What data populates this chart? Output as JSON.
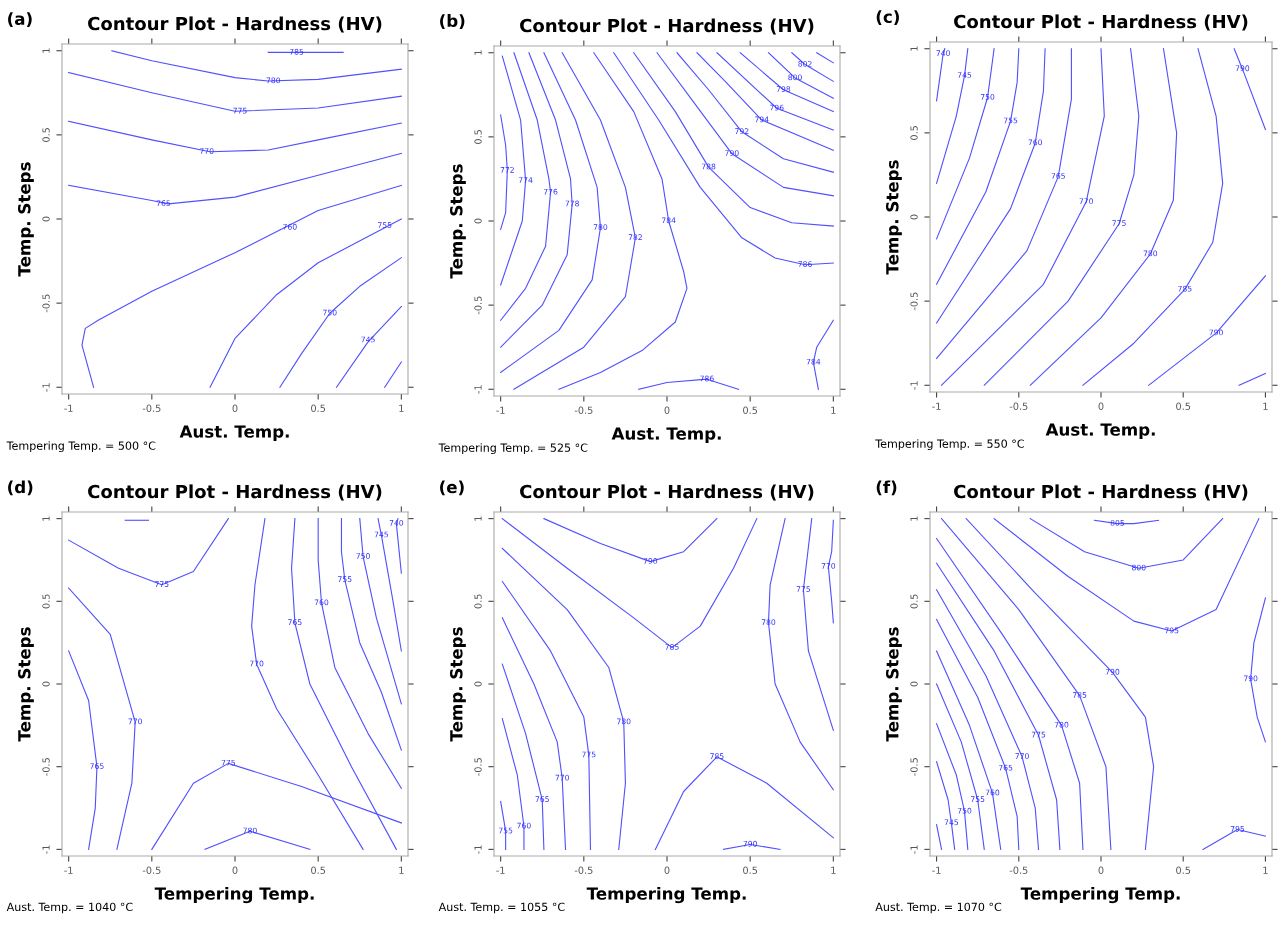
{
  "chart_data": [
    {
      "type": "line",
      "title": "Contour Plot - Hardness (HV)",
      "xlabel": "Aust. Temp.",
      "ylabel": "Temp. Steps",
      "xlim": [
        -1.04,
        1.04
      ],
      "ylim": [
        -1.04,
        1.04
      ],
      "xticks": [
        -1,
        -0.5,
        0,
        0.5,
        1
      ],
      "yticks": [
        -1,
        -0.5,
        0,
        0.5,
        1
      ],
      "annotations": [
        "(a)",
        "Tempering Temp. = 500 °C",
        {
          "text": "785",
          "x": 0.37,
          "y": 0.99
        },
        {
          "text": "780",
          "x": 0.23,
          "y": 0.82
        },
        {
          "text": "775",
          "x": 0.03,
          "y": 0.64
        },
        {
          "text": "770",
          "x": -0.17,
          "y": 0.4
        },
        {
          "text": "765",
          "x": -0.43,
          "y": 0.09
        },
        {
          "text": "760",
          "x": 0.33,
          "y": -0.05
        },
        {
          "text": "755",
          "x": 0.9,
          "y": -0.04
        },
        {
          "text": "750",
          "x": 0.57,
          "y": -0.56
        },
        {
          "text": "745",
          "x": 0.8,
          "y": -0.72
        }
      ],
      "series": [
        {
          "color": "#5050ff",
          "x": [
            0.2,
            0.37,
            0.65
          ],
          "values": [
            0.99,
            0.99,
            0.99
          ]
        },
        {
          "color": "#5050ff",
          "x": [
            -0.74,
            -0.5,
            0,
            0.2,
            0.5,
            1
          ],
          "values": [
            1.0,
            0.94,
            0.84,
            0.82,
            0.83,
            0.89
          ]
        },
        {
          "color": "#5050ff",
          "x": [
            -1,
            -0.5,
            0,
            0.5,
            1
          ],
          "values": [
            0.87,
            0.75,
            0.64,
            0.66,
            0.73
          ]
        },
        {
          "color": "#5050ff",
          "x": [
            -1,
            -0.5,
            -0.15,
            0.2,
            0.5,
            1
          ],
          "values": [
            0.58,
            0.47,
            0.4,
            0.41,
            0.47,
            0.57
          ]
        },
        {
          "color": "#5050ff",
          "x": [
            -1,
            -0.5,
            -0.4,
            0,
            0.5,
            1
          ],
          "values": [
            0.2,
            0.11,
            0.09,
            0.13,
            0.26,
            0.39
          ]
        },
        {
          "color": "#5050ff",
          "x": [
            -0.85,
            -0.92,
            -0.9,
            -0.82,
            -0.5,
            0,
            0.5,
            1
          ],
          "values": [
            -1,
            -0.75,
            -0.65,
            -0.6,
            -0.43,
            -0.2,
            0.05,
            0.2
          ]
        },
        {
          "color": "#5050ff",
          "x": [
            -0.15,
            0,
            0.25,
            0.5,
            1
          ],
          "values": [
            -1,
            -0.71,
            -0.45,
            -0.26,
            0.0
          ]
        },
        {
          "color": "#5050ff",
          "x": [
            0.27,
            0.4,
            0.57,
            0.75,
            1
          ],
          "values": [
            -1,
            -0.8,
            -0.56,
            -0.4,
            -0.23
          ]
        },
        {
          "color": "#5050ff",
          "x": [
            0.61,
            0.8,
            1
          ],
          "values": [
            -1,
            -0.73,
            -0.52
          ]
        },
        {
          "color": "#5050ff",
          "x": [
            0.9,
            1
          ],
          "values": [
            -1,
            -0.85
          ]
        }
      ]
    },
    {
      "type": "line",
      "title": "Contour Plot - Hardness (HV)",
      "xlabel": "Aust. Temp.",
      "ylabel": "Temp. Steps",
      "xlim": [
        -1.04,
        1.04
      ],
      "ylim": [
        -1.04,
        1.04
      ],
      "xticks": [
        -1,
        -0.5,
        0,
        0.5,
        1
      ],
      "yticks": [
        -1,
        -0.5,
        0,
        0.5,
        1
      ],
      "annotations": [
        "(b)",
        "Tempering Temp. = 525 °C",
        {
          "text": "772",
          "x": -0.96,
          "y": 0.3
        },
        {
          "text": "774",
          "x": -0.85,
          "y": 0.24
        },
        {
          "text": "776",
          "x": -0.7,
          "y": 0.17
        },
        {
          "text": "778",
          "x": -0.57,
          "y": 0.1
        },
        {
          "text": "780",
          "x": -0.4,
          "y": -0.04
        },
        {
          "text": "782",
          "x": -0.19,
          "y": -0.1
        },
        {
          "text": "784",
          "x": 0.01,
          "y": 0.0
        },
        {
          "text": "786",
          "x": 0.83,
          "y": -0.26
        },
        {
          "text": "788",
          "x": 0.25,
          "y": 0.32
        },
        {
          "text": "790",
          "x": 0.39,
          "y": 0.4
        },
        {
          "text": "792",
          "x": 0.45,
          "y": 0.53
        },
        {
          "text": "794",
          "x": 0.57,
          "y": 0.6
        },
        {
          "text": "796",
          "x": 0.66,
          "y": 0.67
        },
        {
          "text": "798",
          "x": 0.7,
          "y": 0.78
        },
        {
          "text": "800",
          "x": 0.77,
          "y": 0.85
        },
        {
          "text": "802",
          "x": 0.83,
          "y": 0.93
        },
        {
          "text": "786",
          "x": 0.24,
          "y": -0.94
        },
        {
          "text": "784",
          "x": 0.88,
          "y": -0.84
        }
      ],
      "series": [
        {
          "color": "#5050ff",
          "x": [
            -1,
            -0.97,
            -0.96,
            -0.97,
            -1
          ],
          "values": [
            0.63,
            0.45,
            0.3,
            0.05,
            -0.05
          ]
        },
        {
          "color": "#5050ff",
          "x": [
            -0.99,
            -0.88,
            -0.85,
            -0.87,
            -1
          ],
          "values": [
            0.98,
            0.6,
            0.24,
            0.0,
            -0.38
          ]
        },
        {
          "color": "#5050ff",
          "x": [
            -0.92,
            -0.78,
            -0.71,
            -0.7,
            -0.73,
            -0.85,
            -1
          ],
          "values": [
            1,
            0.6,
            0.25,
            0.17,
            -0.15,
            -0.4,
            -0.59
          ]
        },
        {
          "color": "#5050ff",
          "x": [
            -0.83,
            -0.67,
            -0.58,
            -0.57,
            -0.6,
            -0.75,
            -1
          ],
          "values": [
            1,
            0.6,
            0.25,
            0.1,
            -0.2,
            -0.5,
            -0.75
          ]
        },
        {
          "color": "#5050ff",
          "x": [
            -0.74,
            -0.55,
            -0.42,
            -0.4,
            -0.45,
            -0.65,
            -1
          ],
          "values": [
            1,
            0.6,
            0.2,
            -0.04,
            -0.35,
            -0.65,
            -0.9
          ]
        },
        {
          "color": "#5050ff",
          "x": [
            -0.63,
            -0.4,
            -0.25,
            -0.19,
            -0.25,
            -0.5,
            -0.92
          ],
          "values": [
            1,
            0.6,
            0.2,
            -0.1,
            -0.45,
            -0.75,
            -1
          ]
        },
        {
          "color": "#5050ff",
          "x": [
            -0.44,
            -0.2,
            -0.03,
            0.01,
            0.1,
            0.12,
            0.05,
            -0.15,
            -0.4,
            -0.65
          ],
          "values": [
            1,
            0.65,
            0.25,
            0.0,
            -0.3,
            -0.4,
            -0.6,
            -0.77,
            -0.9,
            -1
          ]
        },
        {
          "color": "#5050ff",
          "x": [
            -0.32,
            -0.05,
            0.2,
            0.45,
            0.65,
            0.83,
            1
          ],
          "values": [
            1,
            0.6,
            0.2,
            -0.1,
            -0.22,
            -0.26,
            -0.25
          ]
        },
        {
          "color": "#5050ff",
          "x": [
            -0.2,
            0.05,
            0.25,
            0.5,
            0.75,
            1
          ],
          "values": [
            1,
            0.65,
            0.32,
            0.08,
            -0.01,
            -0.03
          ]
        },
        {
          "color": "#5050ff",
          "x": [
            -0.06,
            0.15,
            0.39,
            0.7,
            1
          ],
          "values": [
            1,
            0.72,
            0.4,
            0.2,
            0.15
          ]
        },
        {
          "color": "#5050ff",
          "x": [
            0.06,
            0.25,
            0.45,
            0.7,
            1
          ],
          "values": [
            1,
            0.78,
            0.53,
            0.37,
            0.29
          ]
        },
        {
          "color": "#5050ff",
          "x": [
            0.18,
            0.35,
            0.57,
            1
          ],
          "values": [
            1,
            0.83,
            0.6,
            0.42
          ]
        },
        {
          "color": "#5050ff",
          "x": [
            0.3,
            0.66,
            1
          ],
          "values": [
            1,
            0.67,
            0.54
          ]
        },
        {
          "color": "#5050ff",
          "x": [
            0.44,
            0.7,
            1
          ],
          "values": [
            1,
            0.78,
            0.65
          ]
        },
        {
          "color": "#5050ff",
          "x": [
            0.61,
            0.77,
            1
          ],
          "values": [
            1,
            0.85,
            0.73
          ]
        },
        {
          "color": "#5050ff",
          "x": [
            0.75,
            0.83,
            1
          ],
          "values": [
            1,
            0.93,
            0.83
          ]
        },
        {
          "color": "#5050ff",
          "x": [
            0.9,
            1
          ],
          "values": [
            1,
            0.94
          ]
        },
        {
          "color": "#5050ff",
          "x": [
            -0.17,
            0.0,
            0.24,
            0.43
          ],
          "values": [
            -1,
            -0.96,
            -0.94,
            -1
          ]
        },
        {
          "color": "#5050ff",
          "x": [
            1,
            0.9,
            0.88,
            0.91
          ],
          "values": [
            -0.59,
            -0.75,
            -0.84,
            -1
          ]
        }
      ]
    },
    {
      "type": "line",
      "title": "Contour Plot - Hardness (HV)",
      "xlabel": "Aust. Temp.",
      "ylabel": "Temp. Steps",
      "xlim": [
        -1.04,
        1.04
      ],
      "ylim": [
        -1.04,
        1.04
      ],
      "xticks": [
        -1,
        -0.5,
        0,
        0.5,
        1
      ],
      "yticks": [
        -1,
        -0.5,
        0,
        0.5,
        1
      ],
      "annotations": [
        "(c)",
        "Tempering Temp. = 550 °C",
        {
          "text": "740",
          "x": -0.96,
          "y": 0.97
        },
        {
          "text": "745",
          "x": -0.83,
          "y": 0.84
        },
        {
          "text": "750",
          "x": -0.69,
          "y": 0.71
        },
        {
          "text": "755",
          "x": -0.55,
          "y": 0.57
        },
        {
          "text": "760",
          "x": -0.4,
          "y": 0.44
        },
        {
          "text": "765",
          "x": -0.26,
          "y": 0.24
        },
        {
          "text": "770",
          "x": -0.09,
          "y": 0.09
        },
        {
          "text": "775",
          "x": 0.11,
          "y": -0.04
        },
        {
          "text": "780",
          "x": 0.3,
          "y": -0.22
        },
        {
          "text": "785",
          "x": 0.51,
          "y": -0.43
        },
        {
          "text": "790",
          "x": 0.86,
          "y": 0.88
        },
        {
          "text": "790",
          "x": 0.7,
          "y": -0.69
        }
      ],
      "series": [
        {
          "color": "#5050ff",
          "x": [
            -0.95,
            -0.96,
            -1
          ],
          "values": [
            1,
            0.97,
            0.69
          ]
        },
        {
          "color": "#5050ff",
          "x": [
            -0.81,
            -0.83,
            -0.88,
            -1
          ],
          "values": [
            1,
            0.84,
            0.6,
            0.2
          ]
        },
        {
          "color": "#5050ff",
          "x": [
            -0.65,
            -0.69,
            -0.8,
            -1
          ],
          "values": [
            1,
            0.71,
            0.35,
            -0.13
          ]
        },
        {
          "color": "#5050ff",
          "x": [
            -0.5,
            -0.51,
            -0.55,
            -0.7,
            -1
          ],
          "values": [
            1,
            0.8,
            0.57,
            0.15,
            -0.4
          ]
        },
        {
          "color": "#5050ff",
          "x": [
            -0.34,
            -0.35,
            -0.4,
            -0.55,
            -1
          ],
          "values": [
            1,
            0.75,
            0.44,
            0.05,
            -0.63
          ]
        },
        {
          "color": "#5050ff",
          "x": [
            -0.18,
            -0.18,
            -0.26,
            -0.45,
            -1
          ],
          "values": [
            1,
            0.7,
            0.24,
            -0.2,
            -0.84
          ]
        },
        {
          "color": "#5050ff",
          "x": [
            0.0,
            0.02,
            -0.09,
            -0.35,
            -0.97
          ],
          "values": [
            1,
            0.6,
            0.09,
            -0.4,
            -1
          ]
        },
        {
          "color": "#5050ff",
          "x": [
            0.18,
            0.23,
            0.2,
            0.11,
            -0.2,
            -0.71
          ],
          "values": [
            1,
            0.6,
            0.25,
            -0.04,
            -0.5,
            -1
          ]
        },
        {
          "color": "#5050ff",
          "x": [
            0.38,
            0.46,
            0.44,
            0.3,
            0.0,
            -0.43
          ],
          "values": [
            1,
            0.5,
            0.1,
            -0.22,
            -0.6,
            -1
          ]
        },
        {
          "color": "#5050ff",
          "x": [
            0.59,
            0.7,
            0.74,
            0.68,
            0.51,
            0.2,
            -0.11
          ],
          "values": [
            1,
            0.6,
            0.2,
            -0.15,
            -0.43,
            -0.75,
            -1
          ]
        },
        {
          "color": "#5050ff",
          "x": [
            0.81,
            0.86,
            1
          ],
          "values": [
            1,
            0.88,
            0.52
          ]
        },
        {
          "color": "#5050ff",
          "x": [
            1,
            0.7,
            0.29
          ],
          "values": [
            -0.35,
            -0.69,
            -1
          ]
        },
        {
          "color": "#5050ff",
          "x": [
            0.84,
            1
          ],
          "values": [
            -1,
            -0.93
          ]
        }
      ]
    },
    {
      "type": "line",
      "title": "Contour Plot - Hardness (HV)",
      "xlabel": "Tempering Temp.",
      "ylabel": "Temp. Steps",
      "xlim": [
        -1.04,
        1.04
      ],
      "ylim": [
        -1.04,
        1.04
      ],
      "xticks": [
        -1,
        -0.5,
        0,
        0.5,
        1
      ],
      "yticks": [
        -1,
        -0.5,
        0,
        0.5,
        1
      ],
      "annotations": [
        "(d)",
        "Aust. Temp. = 1040 °C",
        {
          "text": "775",
          "x": -0.44,
          "y": 0.6
        },
        {
          "text": "770",
          "x": -0.6,
          "y": -0.23
        },
        {
          "text": "765",
          "x": -0.83,
          "y": -0.5
        },
        {
          "text": "775",
          "x": -0.04,
          "y": -0.48
        },
        {
          "text": "780",
          "x": 0.09,
          "y": -0.89
        },
        {
          "text": "770",
          "x": 0.13,
          "y": 0.12
        },
        {
          "text": "765",
          "x": 0.36,
          "y": 0.37
        },
        {
          "text": "760",
          "x": 0.52,
          "y": 0.49
        },
        {
          "text": "755",
          "x": 0.66,
          "y": 0.63
        },
        {
          "text": "750",
          "x": 0.77,
          "y": 0.77
        },
        {
          "text": "745",
          "x": 0.88,
          "y": 0.9
        },
        {
          "text": "740",
          "x": 0.97,
          "y": 0.97
        }
      ],
      "series": [
        {
          "color": "#5050ff",
          "x": [
            -0.66,
            -0.52
          ],
          "values": [
            0.99,
            0.99
          ]
        },
        {
          "color": "#5050ff",
          "x": [
            -1,
            -0.7,
            -0.44,
            -0.25,
            -0.04
          ],
          "values": [
            0.87,
            0.7,
            0.6,
            0.68,
            1
          ]
        },
        {
          "color": "#5050ff",
          "x": [
            -1,
            -0.75,
            -0.6,
            -0.62,
            -0.71
          ],
          "values": [
            0.58,
            0.3,
            -0.23,
            -0.6,
            -1
          ]
        },
        {
          "color": "#5050ff",
          "x": [
            -1,
            -0.88,
            -0.83,
            -0.84,
            -0.88
          ],
          "values": [
            0.2,
            -0.1,
            -0.5,
            -0.75,
            -1
          ]
        },
        {
          "color": "#5050ff",
          "x": [
            -0.5,
            -0.25,
            -0.04,
            0.4,
            1
          ],
          "values": [
            -1,
            -0.6,
            -0.48,
            -0.62,
            -0.84
          ]
        },
        {
          "color": "#5050ff",
          "x": [
            -0.18,
            0.09,
            0.45
          ],
          "values": [
            -1,
            -0.89,
            -1
          ]
        },
        {
          "color": "#5050ff",
          "x": [
            0.18,
            0.12,
            0.1,
            0.13,
            0.25,
            0.5,
            0.77
          ],
          "values": [
            1,
            0.6,
            0.35,
            0.12,
            -0.15,
            -0.55,
            -1
          ]
        },
        {
          "color": "#5050ff",
          "x": [
            0.36,
            0.34,
            0.36,
            0.45,
            0.7,
            0.97
          ],
          "values": [
            1,
            0.7,
            0.37,
            0.0,
            -0.5,
            -1
          ]
        },
        {
          "color": "#5050ff",
          "x": [
            0.5,
            0.5,
            0.52,
            0.6,
            0.8,
            1
          ],
          "values": [
            1,
            0.75,
            0.49,
            0.1,
            -0.3,
            -0.63
          ]
        },
        {
          "color": "#5050ff",
          "x": [
            0.64,
            0.64,
            0.66,
            0.75,
            0.88,
            1
          ],
          "values": [
            1,
            0.8,
            0.63,
            0.25,
            -0.05,
            -0.4
          ]
        },
        {
          "color": "#5050ff",
          "x": [
            0.75,
            0.77,
            0.85,
            1
          ],
          "values": [
            1,
            0.77,
            0.4,
            -0.12
          ]
        },
        {
          "color": "#5050ff",
          "x": [
            0.86,
            0.88,
            0.95,
            1
          ],
          "values": [
            1,
            0.9,
            0.5,
            0.2
          ]
        },
        {
          "color": "#5050ff",
          "x": [
            0.98,
            0.97,
            1
          ],
          "values": [
            1,
            0.97,
            0.67
          ]
        }
      ]
    },
    {
      "type": "line",
      "title": "Contour Plot - Hardness (HV)",
      "xlabel": "Tempering Temp.",
      "ylabel": "Temp. Steps",
      "xlim": [
        -1.04,
        1.04
      ],
      "ylim": [
        -1.04,
        1.04
      ],
      "xticks": [
        -1,
        -0.5,
        0,
        0.5,
        1
      ],
      "yticks": [
        -1,
        -0.5,
        0,
        0.5,
        1
      ],
      "annotations": [
        "(e)",
        "Aust. Temp. = 1055 °C",
        {
          "text": "790",
          "x": -0.1,
          "y": 0.74
        },
        {
          "text": "785",
          "x": 0.03,
          "y": 0.22
        },
        {
          "text": "780",
          "x": -0.26,
          "y": -0.23
        },
        {
          "text": "775",
          "x": -0.47,
          "y": -0.43
        },
        {
          "text": "770",
          "x": -0.63,
          "y": -0.57
        },
        {
          "text": "765",
          "x": -0.75,
          "y": -0.7
        },
        {
          "text": "760",
          "x": -0.86,
          "y": -0.86
        },
        {
          "text": "755",
          "x": -0.97,
          "y": -0.89
        },
        {
          "text": "780",
          "x": 0.61,
          "y": 0.37
        },
        {
          "text": "775",
          "x": 0.82,
          "y": 0.57
        },
        {
          "text": "770",
          "x": 0.97,
          "y": 0.71
        },
        {
          "text": "785",
          "x": 0.3,
          "y": -0.44
        },
        {
          "text": "790",
          "x": 0.5,
          "y": -0.97
        }
      ],
      "series": [
        {
          "color": "#5050ff",
          "x": [
            -0.74,
            -0.4,
            -0.1,
            0.1,
            0.3
          ],
          "values": [
            1,
            0.85,
            0.74,
            0.8,
            1
          ]
        },
        {
          "color": "#5050ff",
          "x": [
            -0.99,
            -0.6,
            -0.2,
            0.03,
            0.2,
            0.4,
            0.54
          ],
          "values": [
            1,
            0.7,
            0.4,
            0.22,
            0.35,
            0.7,
            1
          ]
        },
        {
          "color": "#5050ff",
          "x": [
            -0.99,
            -0.6,
            -0.35,
            -0.26,
            -0.25,
            -0.29
          ],
          "values": [
            0.82,
            0.45,
            0.1,
            -0.23,
            -0.6,
            -1
          ]
        },
        {
          "color": "#5050ff",
          "x": [
            -0.99,
            -0.7,
            -0.5,
            -0.47,
            -0.46
          ],
          "values": [
            0.62,
            0.2,
            -0.2,
            -0.43,
            -1
          ]
        },
        {
          "color": "#5050ff",
          "x": [
            -0.99,
            -0.8,
            -0.66,
            -0.63,
            -0.61
          ],
          "values": [
            0.4,
            0.0,
            -0.35,
            -0.57,
            -1
          ]
        },
        {
          "color": "#5050ff",
          "x": [
            -0.99,
            -0.85,
            -0.75,
            -0.74
          ],
          "values": [
            0.12,
            -0.3,
            -0.7,
            -1
          ]
        },
        {
          "color": "#5050ff",
          "x": [
            -0.99,
            -0.9,
            -0.86,
            -0.86
          ],
          "values": [
            -0.21,
            -0.55,
            -0.86,
            -1
          ]
        },
        {
          "color": "#5050ff",
          "x": [
            -1,
            -0.97,
            -0.97
          ],
          "values": [
            -0.71,
            -0.89,
            -1
          ]
        },
        {
          "color": "#5050ff",
          "x": [
            0.71,
            0.62,
            0.61,
            0.65,
            0.8,
            1
          ],
          "values": [
            1,
            0.6,
            0.37,
            0.0,
            -0.35,
            -0.64
          ]
        },
        {
          "color": "#5050ff",
          "x": [
            0.87,
            0.82,
            0.85,
            1
          ],
          "values": [
            1,
            0.57,
            0.2,
            -0.28
          ]
        },
        {
          "color": "#5050ff",
          "x": [
            1,
            0.99,
            0.97,
            0.99,
            1
          ],
          "values": [
            0.99,
            0.8,
            0.71,
            0.5,
            0.37
          ]
        },
        {
          "color": "#5050ff",
          "x": [
            -0.07,
            0.1,
            0.3,
            0.6,
            1
          ],
          "values": [
            -1,
            -0.65,
            -0.44,
            -0.6,
            -0.93
          ]
        },
        {
          "color": "#5050ff",
          "x": [
            0.34,
            0.5,
            0.68
          ],
          "values": [
            -1,
            -0.97,
            -1
          ]
        }
      ]
    },
    {
      "type": "line",
      "title": "Contour Plot - Hardness (HV)",
      "xlabel": "Tempering Temp.",
      "ylabel": "Temp. Steps",
      "xlim": [
        -1.04,
        1.04
      ],
      "ylim": [
        -1.04,
        1.04
      ],
      "xticks": [
        -1,
        -0.5,
        0,
        0.5,
        1
      ],
      "yticks": [
        -1,
        -0.5,
        0,
        0.5,
        1
      ],
      "annotations": [
        "(f)",
        "Aust. Temp. = 1070 °C",
        {
          "text": "805",
          "x": 0.1,
          "y": 0.97
        },
        {
          "text": "800",
          "x": 0.23,
          "y": 0.7
        },
        {
          "text": "795",
          "x": 0.43,
          "y": 0.32
        },
        {
          "text": "790",
          "x": 0.07,
          "y": 0.07
        },
        {
          "text": "785",
          "x": -0.13,
          "y": -0.07
        },
        {
          "text": "780",
          "x": -0.24,
          "y": -0.25
        },
        {
          "text": "775",
          "x": -0.38,
          "y": -0.31
        },
        {
          "text": "770",
          "x": -0.48,
          "y": -0.44
        },
        {
          "text": "765",
          "x": -0.58,
          "y": -0.51
        },
        {
          "text": "760",
          "x": -0.66,
          "y": -0.66
        },
        {
          "text": "755",
          "x": -0.75,
          "y": -0.7
        },
        {
          "text": "750",
          "x": -0.83,
          "y": -0.77
        },
        {
          "text": "745",
          "x": -0.91,
          "y": -0.84
        },
        {
          "text": "790",
          "x": 0.91,
          "y": 0.03
        },
        {
          "text": "795",
          "x": 0.83,
          "y": -0.88
        }
      ],
      "series": [
        {
          "color": "#5050ff",
          "x": [
            -0.04,
            0.1,
            0.2,
            0.35
          ],
          "values": [
            0.99,
            0.97,
            0.97,
            0.99
          ]
        },
        {
          "color": "#5050ff",
          "x": [
            -0.43,
            -0.1,
            0.23,
            0.5,
            0.74
          ],
          "values": [
            1,
            0.8,
            0.7,
            0.75,
            1
          ]
        },
        {
          "color": "#5050ff",
          "x": [
            -0.65,
            -0.2,
            0.2,
            0.43,
            0.7,
            0.96
          ],
          "values": [
            1,
            0.65,
            0.38,
            0.32,
            0.45,
            1
          ]
        },
        {
          "color": "#5050ff",
          "x": [
            -0.82,
            -0.4,
            0.07,
            0.27,
            0.32,
            0.27
          ],
          "values": [
            1,
            0.55,
            0.07,
            -0.2,
            -0.5,
            -1
          ]
        },
        {
          "color": "#5050ff",
          "x": [
            -0.97,
            -0.5,
            -0.13,
            0.03,
            0.06
          ],
          "values": [
            1,
            0.45,
            -0.07,
            -0.5,
            -1
          ]
        },
        {
          "color": "#5050ff",
          "x": [
            -1,
            -0.6,
            -0.24,
            -0.13,
            -0.11
          ],
          "values": [
            0.88,
            0.3,
            -0.25,
            -0.6,
            -1
          ]
        },
        {
          "color": "#5050ff",
          "x": [
            -1,
            -0.65,
            -0.38,
            -0.27,
            -0.25
          ],
          "values": [
            0.73,
            0.2,
            -0.31,
            -0.7,
            -1
          ]
        },
        {
          "color": "#5050ff",
          "x": [
            -1,
            -0.7,
            -0.48,
            -0.4,
            -0.38
          ],
          "values": [
            0.57,
            0.05,
            -0.44,
            -0.75,
            -1
          ]
        },
        {
          "color": "#5050ff",
          "x": [
            -1,
            -0.75,
            -0.58,
            -0.51,
            -0.5
          ],
          "values": [
            0.39,
            -0.08,
            -0.51,
            -0.8,
            -1
          ]
        },
        {
          "color": "#5050ff",
          "x": [
            -1,
            -0.8,
            -0.66,
            -0.61
          ],
          "values": [
            0.2,
            -0.25,
            -0.66,
            -1
          ]
        },
        {
          "color": "#5050ff",
          "x": [
            -1,
            -0.85,
            -0.75,
            -0.71
          ],
          "values": [
            0.0,
            -0.35,
            -0.7,
            -1
          ]
        },
        {
          "color": "#5050ff",
          "x": [
            -1,
            -0.88,
            -0.83,
            -0.81
          ],
          "values": [
            -0.24,
            -0.55,
            -0.77,
            -1
          ]
        },
        {
          "color": "#5050ff",
          "x": [
            -1,
            -0.93,
            -0.91,
            -0.89
          ],
          "values": [
            -0.47,
            -0.7,
            -0.84,
            -1
          ]
        },
        {
          "color": "#5050ff",
          "x": [
            -1,
            -0.97
          ],
          "values": [
            -0.85,
            -1
          ]
        },
        {
          "color": "#5050ff",
          "x": [
            1,
            0.93,
            0.91,
            0.95,
            1
          ],
          "values": [
            0.52,
            0.25,
            0.03,
            -0.2,
            -0.35
          ]
        },
        {
          "color": "#5050ff",
          "x": [
            0.62,
            0.83,
            1
          ],
          "values": [
            -1,
            -0.88,
            -0.92
          ]
        }
      ]
    }
  ]
}
